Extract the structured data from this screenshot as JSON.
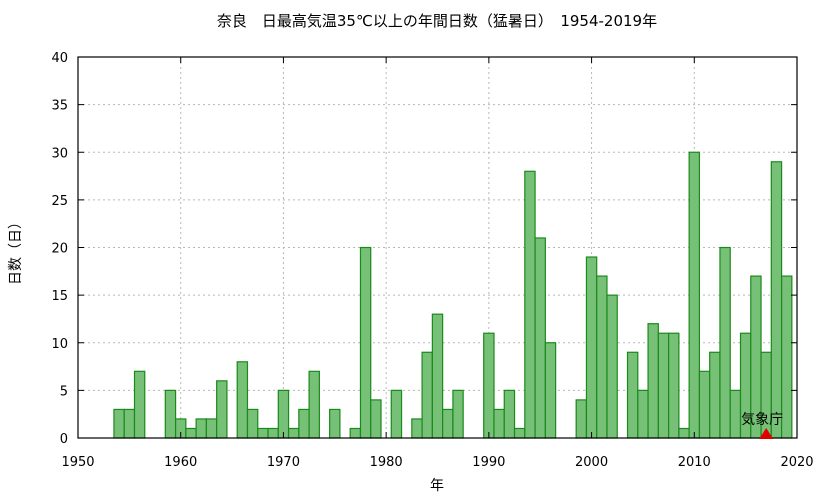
{
  "chart_data": {
    "type": "bar",
    "title": "奈良　日最高気温35℃以上の年間日数（猛暑日）　1954-2019年",
    "xlabel": "年",
    "ylabel": "日数（日）",
    "xlim": [
      1950,
      2020
    ],
    "ylim": [
      0,
      40
    ],
    "xticks": [
      1950,
      1960,
      1970,
      1980,
      1990,
      2000,
      2010,
      2020
    ],
    "yticks": [
      0,
      5,
      10,
      15,
      20,
      25,
      30,
      35,
      40
    ],
    "grid": true,
    "colors": {
      "bar_fill": "#77c077",
      "bar_stroke": "#1a8a1a",
      "marker": "#e00000"
    },
    "annotation": {
      "label": "気象庁",
      "x": 2017,
      "y": 0,
      "marker": "triangle"
    },
    "x": [
      1954,
      1955,
      1956,
      1957,
      1958,
      1959,
      1960,
      1961,
      1962,
      1963,
      1964,
      1965,
      1966,
      1967,
      1968,
      1969,
      1970,
      1971,
      1972,
      1973,
      1974,
      1975,
      1976,
      1977,
      1978,
      1979,
      1980,
      1981,
      1982,
      1983,
      1984,
      1985,
      1986,
      1987,
      1988,
      1989,
      1990,
      1991,
      1992,
      1993,
      1994,
      1995,
      1996,
      1997,
      1998,
      1999,
      2000,
      2001,
      2002,
      2003,
      2004,
      2005,
      2006,
      2007,
      2008,
      2009,
      2010,
      2011,
      2012,
      2013,
      2014,
      2015,
      2016,
      2017,
      2018,
      2019
    ],
    "values": [
      3,
      3,
      7,
      0,
      0,
      5,
      2,
      1,
      2,
      2,
      6,
      0,
      8,
      3,
      1,
      1,
      5,
      1,
      3,
      7,
      0,
      3,
      0,
      1,
      20,
      4,
      0,
      5,
      0,
      2,
      9,
      13,
      3,
      5,
      0,
      0,
      11,
      3,
      5,
      1,
      28,
      21,
      10,
      0,
      0,
      4,
      19,
      17,
      15,
      0,
      9,
      5,
      12,
      11,
      11,
      1,
      30,
      7,
      9,
      20,
      5,
      11,
      17,
      9,
      29,
      17
    ]
  }
}
